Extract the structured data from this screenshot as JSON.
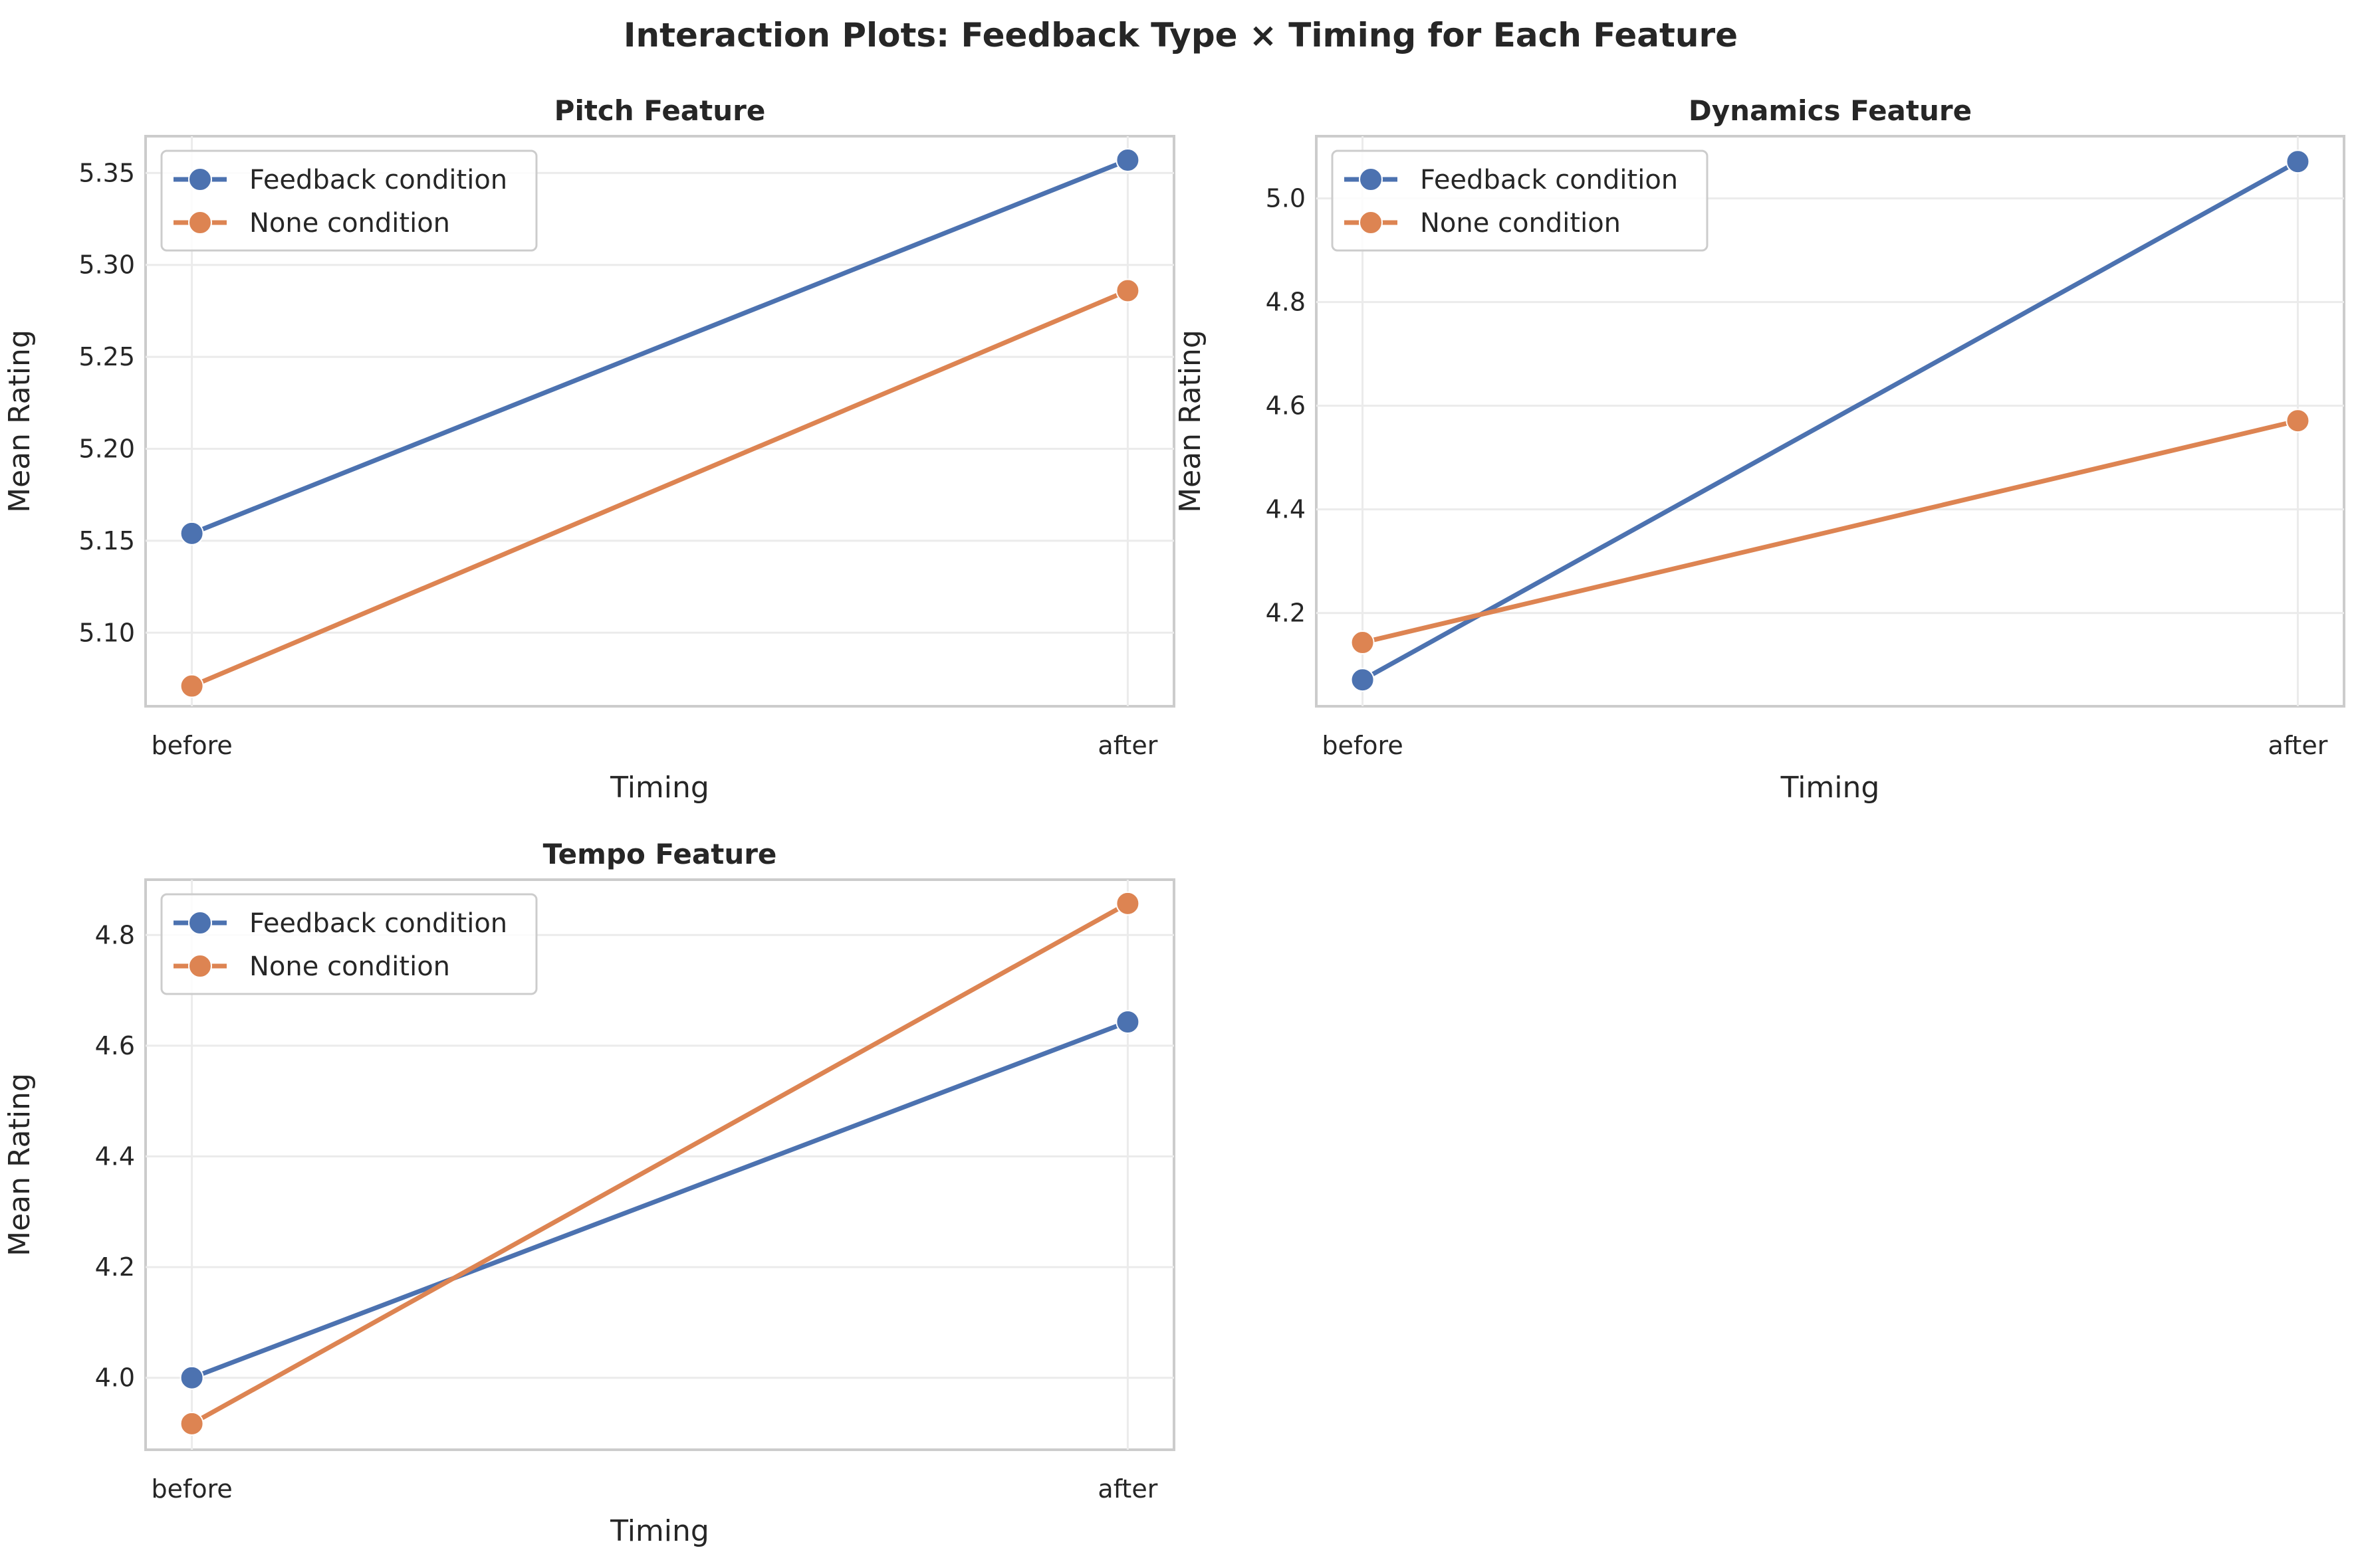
{
  "figure": {
    "title": "Interaction Plots: Feedback Type × Timing for Each Feature"
  },
  "colors": {
    "feedback": "#4c72b0",
    "none": "#dd8452"
  },
  "chart_data": [
    {
      "type": "line",
      "title": "Pitch Feature",
      "xlabel": "Timing",
      "ylabel": "Mean Rating",
      "categories": [
        "before",
        "after"
      ],
      "ylim": [
        5.06,
        5.37
      ],
      "yticks": [
        5.1,
        5.15,
        5.2,
        5.25,
        5.3,
        5.35
      ],
      "ytick_labels": [
        "5.10",
        "5.15",
        "5.20",
        "5.25",
        "5.30",
        "5.35"
      ],
      "grid": true,
      "legend": "upper-left",
      "series": [
        {
          "name": "Feedback condition",
          "color": "#4c72b0",
          "values": [
            5.154,
            5.357
          ]
        },
        {
          "name": "None condition",
          "color": "#dd8452",
          "values": [
            5.071,
            5.286
          ]
        }
      ]
    },
    {
      "type": "line",
      "title": "Dynamics Feature",
      "xlabel": "Timing",
      "ylabel": "Mean Rating",
      "categories": [
        "before",
        "after"
      ],
      "ylim": [
        4.02,
        5.12
      ],
      "yticks": [
        4.2,
        4.4,
        4.6,
        4.8,
        5.0
      ],
      "ytick_labels": [
        "4.2",
        "4.4",
        "4.6",
        "4.8",
        "5.0"
      ],
      "grid": true,
      "legend": "upper-left",
      "series": [
        {
          "name": "Feedback condition",
          "color": "#4c72b0",
          "values": [
            4.071,
            5.071
          ]
        },
        {
          "name": "None condition",
          "color": "#dd8452",
          "values": [
            4.143,
            4.571
          ]
        }
      ]
    },
    {
      "type": "line",
      "title": "Tempo Feature",
      "xlabel": "Timing",
      "ylabel": "Mean Rating",
      "categories": [
        "before",
        "after"
      ],
      "ylim": [
        3.87,
        4.9
      ],
      "yticks": [
        4.0,
        4.2,
        4.4,
        4.6,
        4.8
      ],
      "ytick_labels": [
        "4.0",
        "4.2",
        "4.4",
        "4.6",
        "4.8"
      ],
      "grid": true,
      "legend": "upper-left",
      "series": [
        {
          "name": "Feedback condition",
          "color": "#4c72b0",
          "values": [
            4.0,
            4.643
          ]
        },
        {
          "name": "None condition",
          "color": "#dd8452",
          "values": [
            3.917,
            4.857
          ]
        }
      ]
    }
  ]
}
